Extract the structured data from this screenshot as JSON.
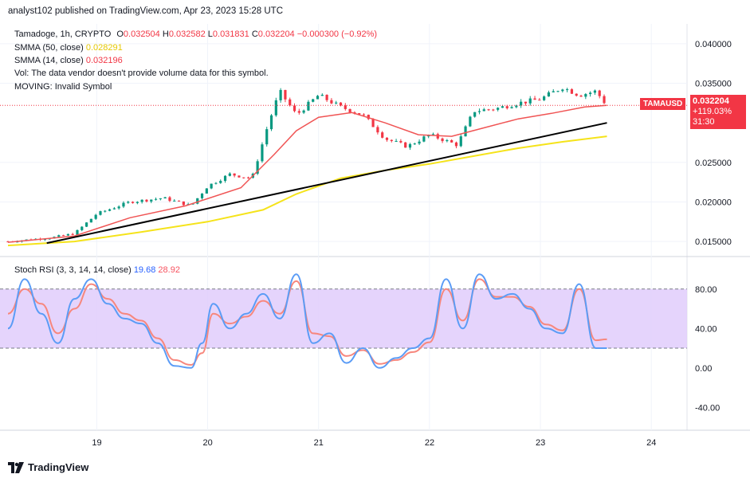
{
  "header": {
    "publisher": "analyst102 published on TradingView.com, Apr 23, 2023 15:28 UTC"
  },
  "legend": {
    "symbol": "Tamadoge, 1h, CRYPTO",
    "o_label": "O",
    "o_value": "0.032504",
    "h_label": "H",
    "h_value": "0.032582",
    "l_label": "L",
    "l_value": "0.031831",
    "c_label": "C",
    "c_value": "0.032204",
    "change": "−0.000300 (−0.92%)",
    "sma50_label": "SMMA (50, close)",
    "sma50_value": "0.028291",
    "sma14_label": "SMMA (14, close)",
    "sma14_value": "0.032196",
    "vol_text": "Vol: The data vendor doesn't provide volume data for this symbol.",
    "moving_text": "MOVING: Invalid Symbol",
    "stoch_label": "Stoch RSI (3, 3, 14, 14, close)",
    "stoch_k": "19.68",
    "stoch_d": "28.92"
  },
  "price_tag": {
    "symbol": "TAMAUSD",
    "price": "0.032204",
    "pct": "+119.03%",
    "countdown": "31:30"
  },
  "brand": {
    "name": "TradingView"
  },
  "colors": {
    "up": "#089981",
    "down": "#f23645",
    "smma50": "#f5e31a",
    "smma14": "#f05454",
    "trendline": "#000000",
    "stoch_k": "#5b9cf6",
    "stoch_d": "#f7877d",
    "stoch_band": "#e1cdfb"
  },
  "chart_data": [
    {
      "type": "candlestick",
      "symbol": "Tamadoge, 1h, CRYPTO",
      "x_ticks": [
        "19",
        "20",
        "21",
        "22",
        "23",
        "24"
      ],
      "y_ticks": [
        "0.040000",
        "0.035000",
        "0.025000",
        "0.020000",
        "0.015000"
      ],
      "ylim": [
        0.0135,
        0.0415
      ],
      "xlim_days": [
        18.2,
        24.2
      ],
      "ohlc_anchors": [
        [
          18.2,
          0.015
        ],
        [
          18.6,
          0.0155
        ],
        [
          18.8,
          0.016
        ],
        [
          19.0,
          0.0185
        ],
        [
          19.3,
          0.02
        ],
        [
          19.6,
          0.0205
        ],
        [
          19.85,
          0.0195
        ],
        [
          20.0,
          0.022
        ],
        [
          20.2,
          0.0235
        ],
        [
          20.4,
          0.023
        ],
        [
          20.55,
          0.03
        ],
        [
          20.65,
          0.034
        ],
        [
          20.8,
          0.031
        ],
        [
          21.0,
          0.0335
        ],
        [
          21.2,
          0.032
        ],
        [
          21.4,
          0.031
        ],
        [
          21.6,
          0.028
        ],
        [
          21.8,
          0.027
        ],
        [
          22.0,
          0.0285
        ],
        [
          22.25,
          0.0272
        ],
        [
          22.4,
          0.0315
        ],
        [
          22.6,
          0.0318
        ],
        [
          22.8,
          0.0325
        ],
        [
          23.0,
          0.033
        ],
        [
          23.2,
          0.0345
        ],
        [
          23.35,
          0.0335
        ],
        [
          23.5,
          0.034
        ],
        [
          23.6,
          0.0322
        ]
      ],
      "smma14": [
        [
          18.2,
          0.0149
        ],
        [
          18.8,
          0.0157
        ],
        [
          19.3,
          0.018
        ],
        [
          19.8,
          0.0195
        ],
        [
          20.3,
          0.0218
        ],
        [
          20.6,
          0.026
        ],
        [
          20.8,
          0.029
        ],
        [
          21.0,
          0.0307
        ],
        [
          21.3,
          0.0313
        ],
        [
          21.6,
          0.03
        ],
        [
          21.9,
          0.0285
        ],
        [
          22.2,
          0.0283
        ],
        [
          22.5,
          0.0294
        ],
        [
          22.8,
          0.0305
        ],
        [
          23.1,
          0.0312
        ],
        [
          23.4,
          0.032
        ],
        [
          23.6,
          0.0322
        ]
      ],
      "smma50": [
        [
          18.2,
          0.0145
        ],
        [
          18.8,
          0.015
        ],
        [
          19.4,
          0.0162
        ],
        [
          20.0,
          0.0175
        ],
        [
          20.5,
          0.019
        ],
        [
          20.8,
          0.021
        ],
        [
          21.2,
          0.023
        ],
        [
          21.6,
          0.024
        ],
        [
          22.0,
          0.0248
        ],
        [
          22.4,
          0.0258
        ],
        [
          22.8,
          0.0268
        ],
        [
          23.2,
          0.0276
        ],
        [
          23.6,
          0.0283
        ]
      ],
      "trendline": [
        [
          18.55,
          0.0148
        ],
        [
          23.6,
          0.03
        ]
      ]
    },
    {
      "type": "line",
      "title": "Stoch RSI (3, 3, 14, 14, close)",
      "y_ticks": [
        "80.00",
        "40.00",
        "0.00",
        "-40.00"
      ],
      "ylim": [
        -60,
        100
      ],
      "band": [
        20,
        80
      ],
      "series": [
        {
          "name": "K",
          "points": [
            [
              18.2,
              40
            ],
            [
              18.35,
              90
            ],
            [
              18.5,
              55
            ],
            [
              18.65,
              25
            ],
            [
              18.8,
              70
            ],
            [
              18.95,
              90
            ],
            [
              19.1,
              65
            ],
            [
              19.25,
              50
            ],
            [
              19.4,
              45
            ],
            [
              19.55,
              25
            ],
            [
              19.7,
              2
            ],
            [
              19.85,
              0
            ],
            [
              19.95,
              25
            ],
            [
              20.05,
              65
            ],
            [
              20.2,
              40
            ],
            [
              20.35,
              55
            ],
            [
              20.5,
              75
            ],
            [
              20.65,
              50
            ],
            [
              20.8,
              95
            ],
            [
              20.95,
              25
            ],
            [
              21.1,
              35
            ],
            [
              21.25,
              5
            ],
            [
              21.4,
              20
            ],
            [
              21.55,
              0
            ],
            [
              21.7,
              10
            ],
            [
              21.85,
              20
            ],
            [
              22.0,
              30
            ],
            [
              22.15,
              90
            ],
            [
              22.3,
              40
            ],
            [
              22.45,
              95
            ],
            [
              22.6,
              70
            ],
            [
              22.75,
              75
            ],
            [
              22.9,
              60
            ],
            [
              23.05,
              40
            ],
            [
              23.2,
              35
            ],
            [
              23.35,
              85
            ],
            [
              23.5,
              20
            ],
            [
              23.6,
              20
            ]
          ]
        },
        {
          "name": "D",
          "points": [
            [
              18.2,
              55
            ],
            [
              18.35,
              80
            ],
            [
              18.5,
              65
            ],
            [
              18.65,
              35
            ],
            [
              18.8,
              60
            ],
            [
              18.95,
              85
            ],
            [
              19.1,
              70
            ],
            [
              19.25,
              55
            ],
            [
              19.4,
              48
            ],
            [
              19.55,
              30
            ],
            [
              19.7,
              8
            ],
            [
              19.85,
              3
            ],
            [
              19.95,
              15
            ],
            [
              20.05,
              55
            ],
            [
              20.2,
              45
            ],
            [
              20.35,
              52
            ],
            [
              20.5,
              68
            ],
            [
              20.65,
              55
            ],
            [
              20.8,
              88
            ],
            [
              20.95,
              35
            ],
            [
              21.1,
              32
            ],
            [
              21.25,
              12
            ],
            [
              21.4,
              18
            ],
            [
              21.55,
              4
            ],
            [
              21.7,
              8
            ],
            [
              21.85,
              16
            ],
            [
              22.0,
              26
            ],
            [
              22.15,
              80
            ],
            [
              22.3,
              48
            ],
            [
              22.45,
              90
            ],
            [
              22.6,
              72
            ],
            [
              22.75,
              72
            ],
            [
              22.9,
              62
            ],
            [
              23.05,
              44
            ],
            [
              23.2,
              38
            ],
            [
              23.35,
              80
            ],
            [
              23.5,
              28
            ],
            [
              23.6,
              29
            ]
          ]
        }
      ]
    }
  ]
}
